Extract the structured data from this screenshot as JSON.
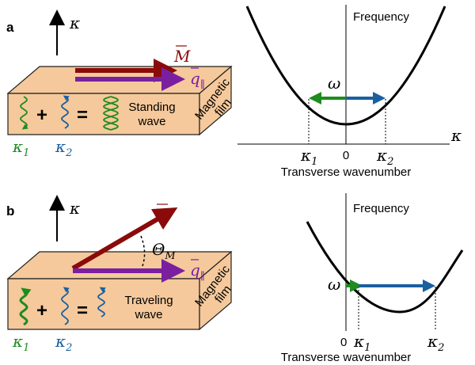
{
  "panel_a": {
    "label": "a",
    "kappa_axis": "κ",
    "magnetization": "M",
    "wavevector": {
      "symbol": "q",
      "sub": "∥"
    },
    "wave_text": [
      "Standing",
      "wave"
    ],
    "film_text": [
      "Magnetic",
      "film"
    ],
    "plus": "+",
    "equals": "=",
    "wave_1": {
      "symbol": "κ",
      "sub": "1"
    },
    "wave_2": {
      "symbol": "κ",
      "sub": "2"
    },
    "graph": {
      "y_label": "Frequency",
      "x_symbol": "κ",
      "omega": "ω",
      "tick_1": {
        "symbol": "κ",
        "sub": "1"
      },
      "tick_0": "0",
      "tick_2": {
        "symbol": "κ",
        "sub": "2"
      },
      "x_label": "Transverse wavenumber"
    }
  },
  "panel_b": {
    "label": "b",
    "kappa_axis": "κ",
    "magnetization": "M",
    "angle": {
      "symbol": "Θ",
      "sub": "M"
    },
    "wavevector": {
      "symbol": "q",
      "sub": "∥"
    },
    "wave_text": [
      "Traveling",
      "wave"
    ],
    "film_text": [
      "Magnetic",
      "film"
    ],
    "plus": "+",
    "equals": "=",
    "wave_1": {
      "symbol": "κ",
      "sub": "1"
    },
    "wave_2": {
      "symbol": "κ",
      "sub": "2"
    },
    "graph": {
      "y_label": "Frequency",
      "omega": "ω",
      "tick_0": "0",
      "tick_1": {
        "symbol": "κ",
        "sub": "1"
      },
      "tick_2": {
        "symbol": "κ",
        "sub": "2"
      },
      "x_label": "Transverse wavenumber"
    }
  }
}
